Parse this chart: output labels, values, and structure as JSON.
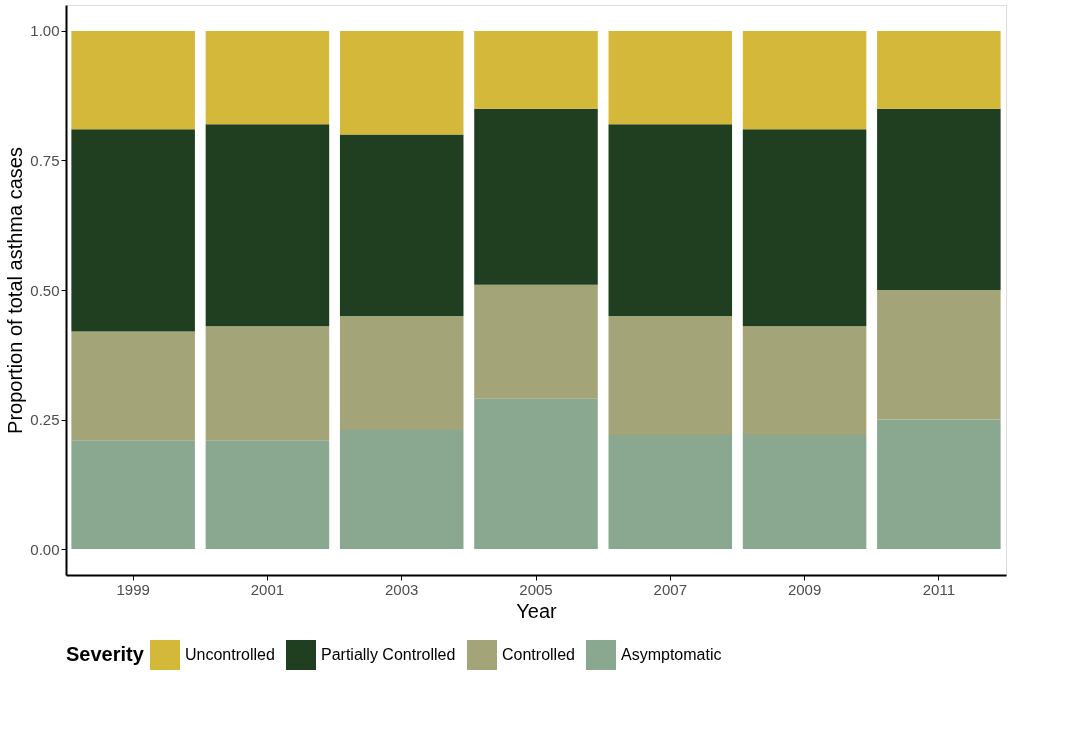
{
  "chart_data": {
    "type": "bar",
    "stacked": true,
    "xlabel": "Year",
    "ylabel": "Proportion of total asthma cases",
    "legend_title": "Severity",
    "legend": "bottom",
    "grid": false,
    "categories": [
      "1999",
      "2001",
      "2003",
      "2005",
      "2007",
      "2009",
      "2011"
    ],
    "ylim": [
      -0.05,
      1.05
    ],
    "yticks": [
      {
        "value": 0,
        "label": "0.00"
      },
      {
        "value": 0.25,
        "label": "0.25"
      },
      {
        "value": 0.5,
        "label": "0.50"
      },
      {
        "value": 0.75,
        "label": "0.75"
      },
      {
        "value": 1,
        "label": "1.00"
      }
    ],
    "series": [
      {
        "name": "Asymptomatic",
        "color": "#8aa88f",
        "values": [
          0.21,
          0.21,
          0.23,
          0.29,
          0.22,
          0.22,
          0.25
        ]
      },
      {
        "name": "Controlled",
        "color": "#a3a478",
        "values": [
          0.21,
          0.22,
          0.22,
          0.22,
          0.23,
          0.21,
          0.25
        ]
      },
      {
        "name": "Partially Controlled",
        "color": "#1f3f20",
        "values": [
          0.39,
          0.39,
          0.35,
          0.34,
          0.37,
          0.38,
          0.35
        ]
      },
      {
        "name": "Uncontrolled",
        "color": "#d4b83a",
        "values": [
          0.19,
          0.18,
          0.2,
          0.15,
          0.18,
          0.19,
          0.15
        ]
      }
    ]
  }
}
